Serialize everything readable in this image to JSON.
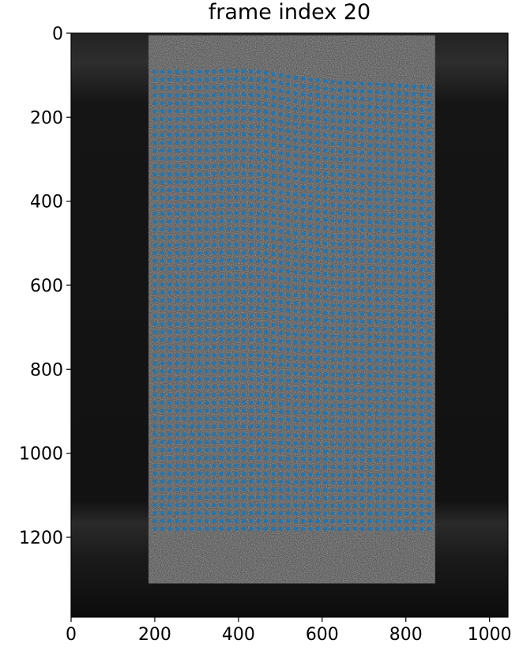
{
  "chart_data": {
    "type": "scatter",
    "title": "frame index 20",
    "xlabel": "",
    "ylabel": "",
    "xlim": [
      0,
      1044
    ],
    "ylim": [
      1390,
      0
    ],
    "y_axis_inverted": true,
    "xticks": [
      0,
      200,
      400,
      600,
      800,
      1000
    ],
    "yticks": [
      0,
      200,
      400,
      600,
      800,
      1000,
      1200
    ],
    "grid": false,
    "legend": "none",
    "background": "grayscale speckle image of a rectangular specimen",
    "marker_color": "#1f77b4",
    "marker_shape": "circle",
    "point_grid": {
      "columns": 38,
      "rows": 59,
      "x_left_first": 200,
      "x_right_first": 855,
      "x_left_last": 200,
      "x_right_last": 855,
      "y_top": [
        92,
        92,
        92,
        92,
        92,
        92,
        92,
        92,
        91,
        90,
        90,
        90,
        90,
        91,
        92,
        94,
        97,
        100,
        103,
        106,
        108,
        110,
        112,
        114,
        116,
        117,
        118,
        119,
        120,
        121,
        122,
        123,
        124,
        125,
        126,
        127,
        128,
        129
      ],
      "y_bottom": 1180
    },
    "specimen": {
      "x_left": 185,
      "x_right": 870,
      "y_top": 5,
      "y_bottom": 1310
    }
  }
}
